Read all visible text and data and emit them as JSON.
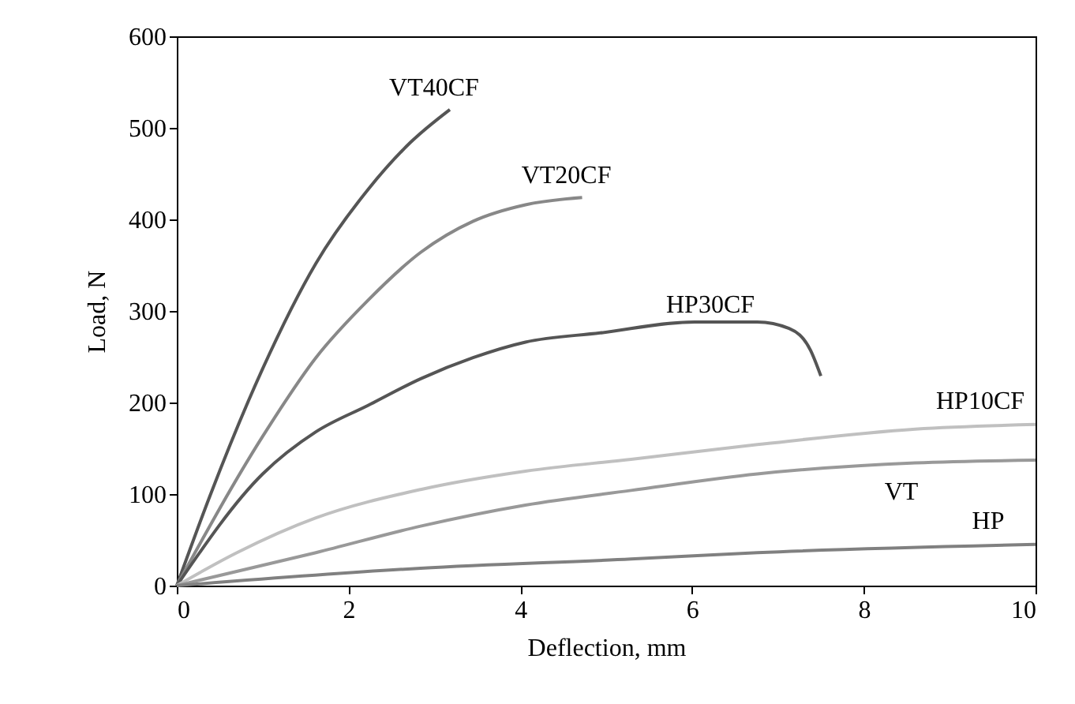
{
  "chart_data": {
    "type": "line",
    "xlabel": "Deflection, mm",
    "ylabel": "Load, N",
    "xlim": [
      0,
      10
    ],
    "xticks": [
      0,
      2,
      4,
      6,
      8,
      10
    ],
    "ylim": [
      0,
      600
    ],
    "yticks": [
      0,
      100,
      200,
      300,
      400,
      500,
      600
    ],
    "grid": false,
    "marker": "none",
    "line_style": "solid",
    "series": [
      {
        "name": "VT40CF",
        "color": "#555555",
        "x": [
          0,
          0.39,
          1.0,
          1.62,
          2.23,
          2.72,
          3.18
        ],
        "values": [
          0,
          99,
          237,
          352,
          433,
          484,
          520
        ]
      },
      {
        "name": "VT20CF",
        "color": "#888888",
        "x": [
          0,
          1.0,
          1.62,
          2.23,
          2.84,
          3.45,
          4.06,
          4.72
        ],
        "values": [
          0,
          163,
          249,
          312,
          364,
          398,
          416,
          424
        ]
      },
      {
        "name": "HP30CF",
        "color": "#555555",
        "x": [
          0,
          1.0,
          1.62,
          2.23,
          2.84,
          3.45,
          4.06,
          4.93,
          6.03,
          6.76,
          7.13,
          7.38,
          7.5
        ],
        "values": [
          0,
          122,
          168,
          197,
          226,
          249,
          266,
          276,
          288,
          288,
          281,
          257,
          229
        ]
      },
      {
        "name": "HP10CF",
        "color": "#c0c0c0",
        "x": [
          0,
          0.7,
          1.62,
          2.84,
          4.06,
          5.29,
          6.76,
          8.6,
          10
        ],
        "values": [
          0,
          36,
          74,
          105,
          125,
          138,
          154,
          171,
          176
        ]
      },
      {
        "name": "VT",
        "color": "#999999",
        "x": [
          0,
          1.62,
          2.84,
          4.06,
          5.29,
          6.76,
          8.6,
          10
        ],
        "values": [
          0,
          36,
          65,
          88,
          104,
          122,
          134,
          137
        ]
      },
      {
        "name": "HP",
        "color": "#808080",
        "x": [
          0,
          2.84,
          5.29,
          6.76,
          10
        ],
        "values": [
          0,
          19,
          29,
          36,
          45
        ]
      }
    ]
  }
}
